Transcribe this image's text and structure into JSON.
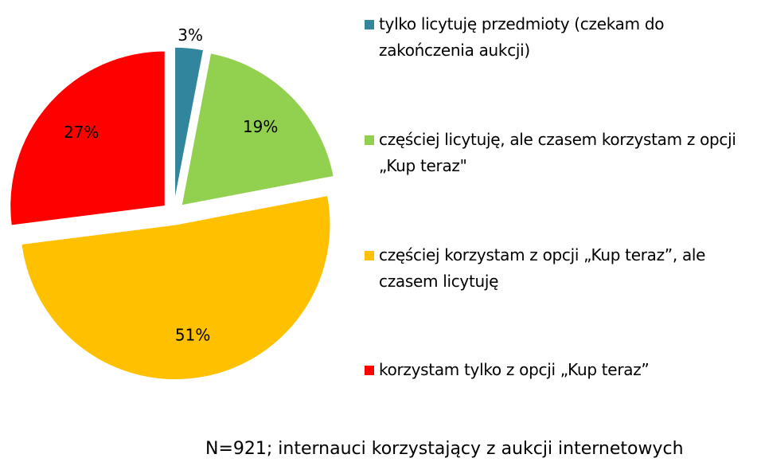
{
  "chart_data": {
    "type": "pie",
    "slices": [
      {
        "label": "tylko licytuję przedmioty (czekam do zakończenia aukcji)",
        "value": 3,
        "data_label": "3%",
        "color": "#31859C",
        "exploded": true
      },
      {
        "label": "częściej licytuję, ale czasem korzystam z opcji „Kup teraz\"",
        "value": 19,
        "data_label": "19%",
        "color": "#92D050",
        "exploded": true
      },
      {
        "label": "częściej korzystam z opcji „Kup teraz”, ale czasem licytuję",
        "value": 51,
        "data_label": "51%",
        "color": "#FFC000",
        "exploded": true
      },
      {
        "label": "korzystam tylko z opcji „Kup teraz”",
        "value": 27,
        "data_label": "27%",
        "color": "#FF0000",
        "exploded": true
      }
    ],
    "legend_position": "right",
    "note": "N=921; internauci korzystający z aukcji internetowych"
  }
}
